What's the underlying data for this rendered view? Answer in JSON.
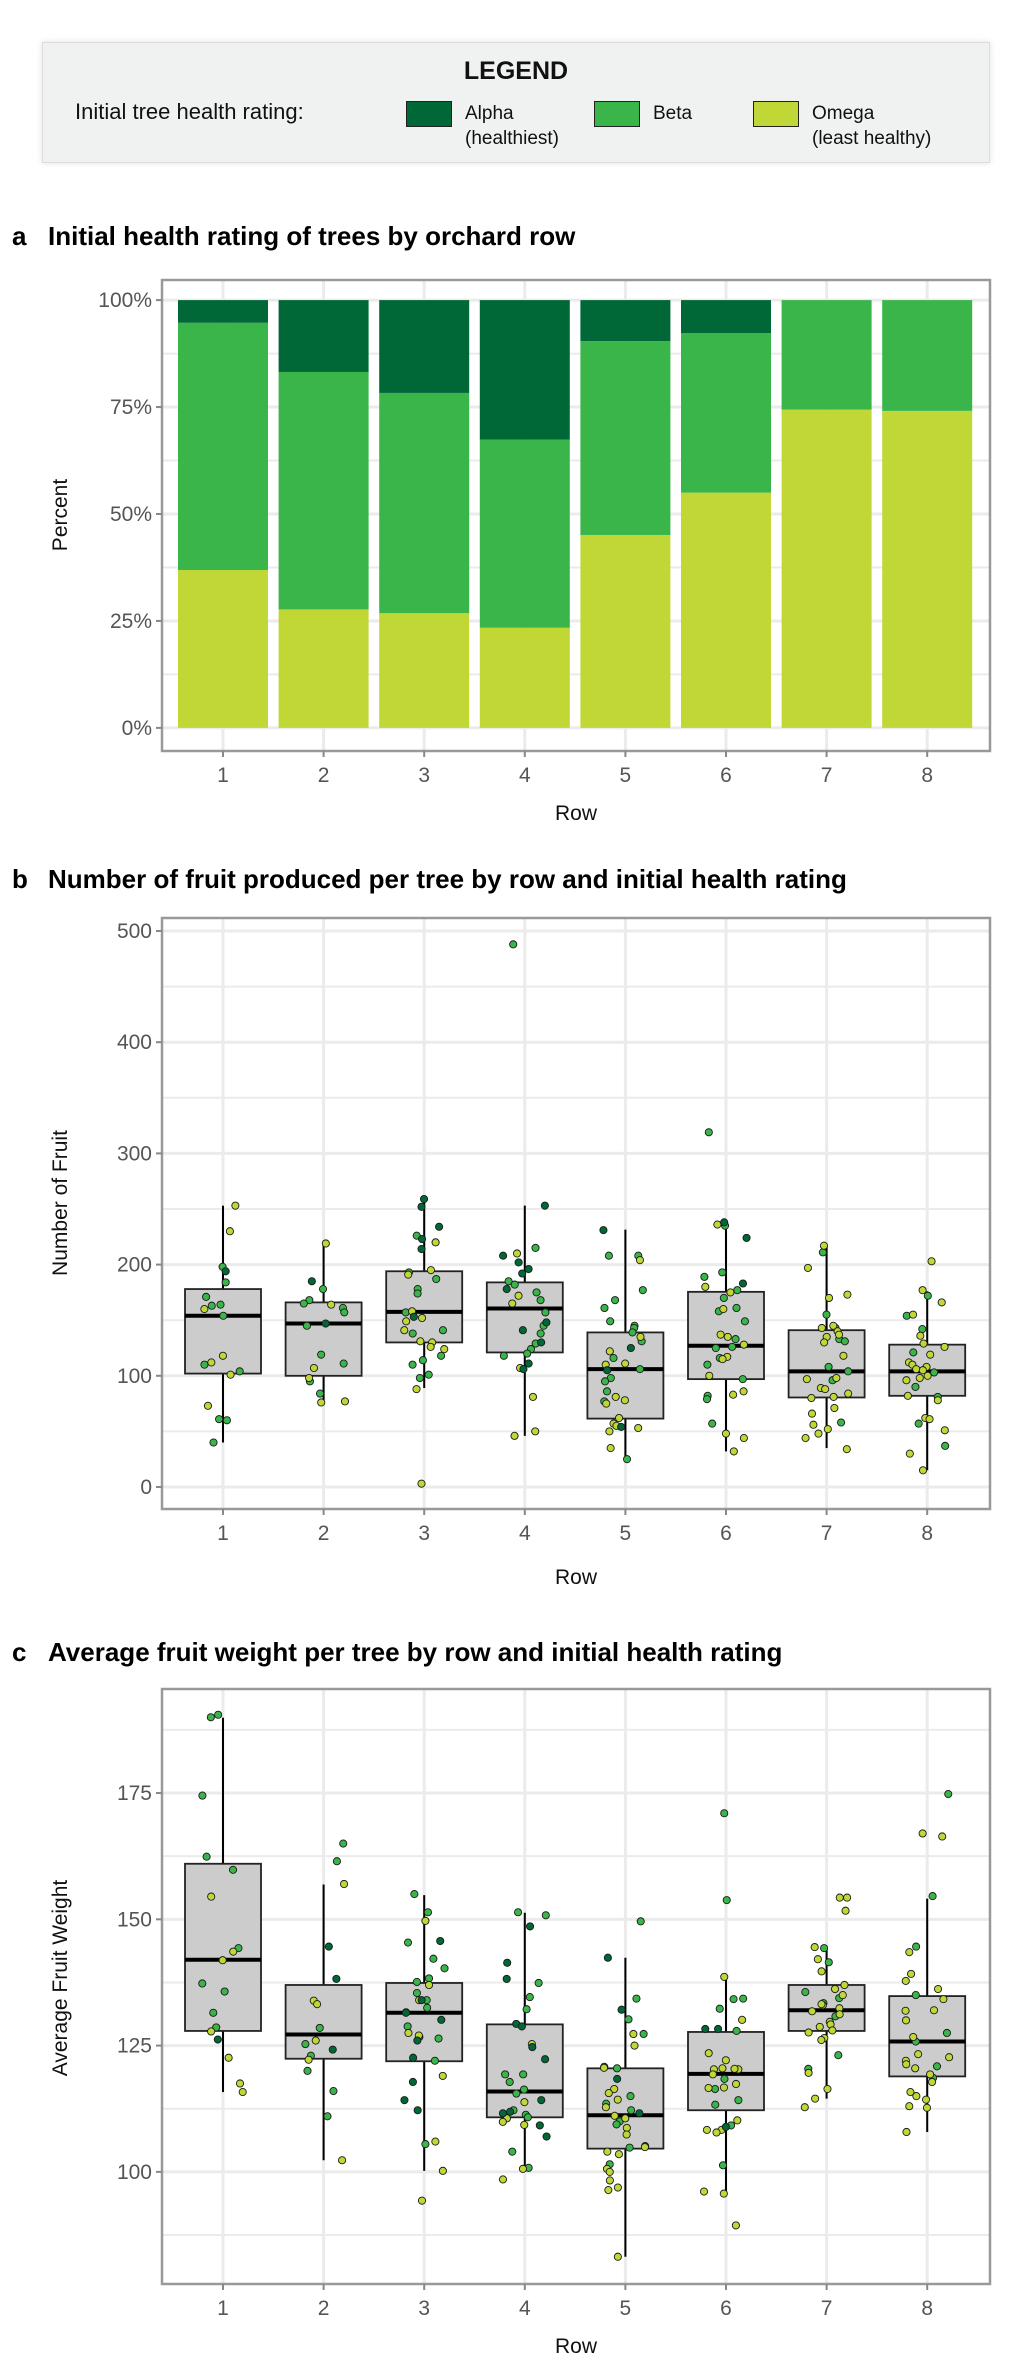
{
  "legend": {
    "title": "LEGEND",
    "label": "Initial tree health rating:",
    "items": [
      {
        "key": "alpha",
        "line1": "Alpha",
        "line2": "(healthiest)",
        "color": "#006837"
      },
      {
        "key": "beta",
        "line1": "Beta",
        "line2": "",
        "color": "#3ab54a"
      },
      {
        "key": "omega",
        "line1": "Omega",
        "line2": "(least healthy)",
        "color": "#c0d736"
      }
    ]
  },
  "colors": {
    "alpha": "#006837",
    "beta": "#3ab54a",
    "omega": "#c0d736",
    "box_fill": "#cccccc",
    "grid": "#ebebeb",
    "panel_border": "#999999"
  },
  "chart_data": [
    {
      "id": "a",
      "letter": "a",
      "title": "Initial health rating of trees by orchard row",
      "type": "bar",
      "stacked": true,
      "xlabel": "Row",
      "ylabel": "Percent",
      "categories": [
        "1",
        "2",
        "3",
        "4",
        "5",
        "6",
        "7",
        "8"
      ],
      "yticks": [
        0,
        25,
        50,
        75,
        100
      ],
      "ytick_labels": [
        "0%",
        "25%",
        "50%",
        "75%",
        "100%"
      ],
      "ylim": [
        -5.4,
        104.7
      ],
      "grid": true,
      "series": [
        {
          "key": "omega",
          "values": [
            36.9,
            27.7,
            26.8,
            23.4,
            45.1,
            55.0,
            74.4,
            74.1
          ]
        },
        {
          "key": "beta",
          "values": [
            57.8,
            55.5,
            51.5,
            44.0,
            45.3,
            37.3,
            25.6,
            25.9
          ]
        },
        {
          "key": "alpha",
          "values": [
            5.3,
            16.8,
            21.7,
            32.6,
            9.6,
            7.7,
            0,
            0
          ]
        }
      ]
    },
    {
      "id": "b",
      "letter": "b",
      "title": "Number of fruit produced per tree by row and initial health rating",
      "type": "box",
      "xlabel": "Row",
      "ylabel": "Number of Fruit",
      "categories": [
        "1",
        "2",
        "3",
        "4",
        "5",
        "6",
        "7",
        "8"
      ],
      "yticks": [
        0,
        100,
        200,
        300,
        400,
        500
      ],
      "ytick_labels": [
        "0",
        "100",
        "200",
        "300",
        "400",
        "500"
      ],
      "ylim": [
        -19.8,
        511.7
      ],
      "grid": true,
      "boxes": [
        {
          "low": 40,
          "q1": 102,
          "median": 154,
          "q3": 178,
          "high": 253
        },
        {
          "low": 77,
          "q1": 100,
          "median": 147,
          "q3": 166,
          "high": 219
        },
        {
          "low": 89,
          "q1": 130,
          "median": 157.5,
          "q3": 194,
          "high": 259
        },
        {
          "low": 46,
          "q1": 121,
          "median": 160.5,
          "q3": 184,
          "high": 253
        },
        {
          "low": 25,
          "q1": 61.5,
          "median": 106,
          "q3": 139,
          "high": 231.5
        },
        {
          "low": 32,
          "q1": 97,
          "median": 127,
          "q3": 175.5,
          "high": 238
        },
        {
          "low": 35,
          "q1": 80.5,
          "median": 104,
          "q3": 141,
          "high": 217
        },
        {
          "low": 15,
          "q1": 82,
          "median": 104,
          "q3": 128,
          "high": 176
        }
      ],
      "points": [
        {
          "alpha": [
            194
          ],
          "beta": [
            198,
            184,
            171,
            163,
            164,
            154,
            110,
            104,
            60,
            61,
            40
          ],
          "omega": [
            253,
            230,
            160,
            118,
            112,
            101,
            73
          ]
        },
        {
          "alpha": [
            185,
            147
          ],
          "beta": [
            178,
            168,
            165,
            161,
            157,
            145,
            119,
            111,
            95,
            84
          ],
          "omega": [
            219,
            164,
            107,
            98,
            77,
            76
          ]
        },
        {
          "alpha": [
            259,
            252,
            234,
            223,
            214,
            153
          ],
          "beta": [
            226,
            193,
            187,
            178,
            174,
            157,
            141,
            138,
            118,
            114,
            110,
            101,
            98
          ],
          "omega": [
            220,
            195,
            191,
            158,
            152,
            149,
            141,
            131,
            130,
            126,
            124,
            88,
            3
          ]
        },
        {
          "alpha": [
            253,
            208,
            202,
            196,
            192,
            178,
            148,
            141,
            130,
            111,
            106
          ],
          "beta": [
            488,
            215,
            185,
            182,
            175,
            168,
            157,
            145,
            138,
            129,
            124,
            120,
            118
          ],
          "omega": [
            210,
            172,
            165,
            107,
            81,
            50,
            46
          ]
        },
        {
          "alpha": [
            231,
            125,
            105,
            54
          ],
          "beta": [
            208,
            208,
            177,
            168,
            161,
            149,
            145,
            143,
            139,
            131,
            116,
            106,
            98,
            95,
            86,
            77,
            25
          ],
          "omega": [
            204,
            135,
            122,
            111,
            110,
            81,
            78,
            75,
            62,
            57,
            55,
            53,
            50,
            35
          ]
        },
        {
          "alpha": [
            238,
            224,
            183
          ],
          "beta": [
            319,
            235,
            193,
            189,
            177,
            170,
            161,
            158,
            149,
            133,
            126,
            125,
            116,
            110,
            97,
            82,
            79,
            57
          ],
          "omega": [
            236,
            180,
            175,
            160,
            137,
            135,
            128,
            117,
            115,
            100,
            86,
            83,
            48,
            44,
            32
          ]
        },
        {
          "alpha": [],
          "beta": [
            211,
            155,
            143,
            133,
            131,
            108,
            104,
            96,
            58
          ],
          "omega": [
            217,
            197,
            173,
            170,
            145,
            143,
            140,
            137,
            135,
            130,
            118,
            98,
            97,
            89,
            88,
            84,
            81,
            80,
            71,
            66,
            56,
            52,
            48,
            44,
            34
          ]
        },
        {
          "alpha": [],
          "beta": [
            172,
            154,
            142,
            121,
            103,
            90,
            81,
            57,
            37
          ],
          "omega": [
            203,
            177,
            166,
            155,
            136,
            129,
            126,
            119,
            112,
            110,
            108,
            106,
            105,
            100,
            98,
            96,
            82,
            78,
            62,
            61,
            51,
            30,
            15
          ]
        }
      ]
    },
    {
      "id": "c",
      "letter": "c",
      "title": "Average fruit weight per tree by row and initial health rating",
      "type": "box",
      "xlabel": "Row",
      "ylabel": "Average Fruit Weight",
      "categories": [
        "1",
        "2",
        "3",
        "4",
        "5",
        "6",
        "7",
        "8"
      ],
      "yticks": [
        100,
        125,
        150,
        175
      ],
      "ytick_labels": [
        "100",
        "125",
        "150",
        "175"
      ],
      "ylim": [
        77.8,
        195.6
      ],
      "grid": true,
      "boxes": [
        {
          "low": 115.8,
          "q1": 127.9,
          "median": 142.0,
          "q3": 161.0,
          "high": 189.9
        },
        {
          "low": 102.3,
          "q1": 122.4,
          "median": 127.2,
          "q3": 137.0,
          "high": 156.9
        },
        {
          "low": 100.2,
          "q1": 121.9,
          "median": 131.5,
          "q3": 137.4,
          "high": 154.8
        },
        {
          "low": 100.6,
          "q1": 110.8,
          "median": 115.9,
          "q3": 129.2,
          "high": 151.3
        },
        {
          "low": 83.2,
          "q1": 104.6,
          "median": 111.2,
          "q3": 120.5,
          "high": 142.4
        },
        {
          "low": 95.7,
          "q1": 112.2,
          "median": 119.4,
          "q3": 127.7,
          "high": 139.0
        },
        {
          "low": 114.5,
          "q1": 127.9,
          "median": 132.0,
          "q3": 137.0,
          "high": 144.5
        },
        {
          "low": 107.9,
          "q1": 118.9,
          "median": 125.8,
          "q3": 134.8,
          "high": 154.1
        }
      ],
      "points": [
        {
          "alpha": [
            126.2
          ],
          "beta": [
            190,
            190.5,
            174.5,
            162.4,
            159.8,
            144.3,
            137.3,
            135.7,
            131.5,
            128.6
          ],
          "omega": [
            154.5,
            143.6,
            141.9,
            127.8,
            122.6,
            117.5,
            115.8
          ]
        },
        {
          "alpha": [
            144.6,
            138.2,
            124.2
          ],
          "beta": [
            165,
            161.5,
            128.5,
            125.3,
            123,
            120,
            116,
            111
          ],
          "omega": [
            157,
            133.9,
            133.2,
            126,
            122.2,
            102.3
          ]
        },
        {
          "alpha": [
            145.7,
            134,
            131.5,
            130.1,
            126,
            122.6,
            117.8,
            114.2,
            112.2
          ],
          "beta": [
            155,
            151.4,
            145.4,
            142.2,
            140.3,
            138.3,
            137.6,
            135.4,
            134,
            132.5,
            128.8,
            126.7,
            126.4,
            122,
            105.5
          ],
          "omega": [
            149.7,
            137,
            134,
            131.6,
            127.5,
            127,
            119,
            106,
            100.2,
            94.3
          ]
        },
        {
          "alpha": [
            148.6,
            141.4,
            138.2,
            129.3,
            128.8,
            124.7,
            122.3,
            114.2,
            111.9,
            111.6,
            109.2,
            107
          ],
          "beta": [
            151.4,
            150.8,
            137.4,
            134.6,
            132.2,
            119.3,
            119.3,
            117.8,
            116.3,
            115.5,
            112.2,
            111.3,
            110.8,
            104,
            100.8
          ],
          "omega": [
            125.3,
            113.8,
            110.6,
            109.9,
            109.3,
            100.6,
            98.5
          ]
        },
        {
          "alpha": [
            142.4,
            132.1,
            118.4,
            111.6
          ],
          "beta": [
            149.6,
            134.3,
            130.2,
            127.3,
            120.8,
            120.5,
            115,
            113.5,
            112.2,
            110,
            109.4,
            105.1,
            104.8,
            101.5
          ],
          "omega": [
            127.3,
            125,
            120.6,
            116.4,
            115.6,
            114.3,
            112.8,
            111.1,
            110.6,
            108.7,
            107.4,
            104.9,
            104,
            103.5,
            100.6,
            100,
            98.3,
            96.9,
            96.4,
            83.2
          ]
        },
        {
          "alpha": [
            128.3,
            128.3,
            108.9
          ],
          "beta": [
            171,
            153.8,
            134.3,
            134.2,
            132.3,
            127.9,
            118.4,
            116.4,
            114.2,
            113.3,
            109.2,
            101.3
          ],
          "omega": [
            138.6,
            130.1,
            123.5,
            122.1,
            120.5,
            120.3,
            120.3,
            120.4,
            119.3,
            117.4,
            116.6,
            116.7,
            110.2,
            108.3,
            108.3,
            107.8,
            96.1,
            95.7,
            89.4
          ]
        },
        {
          "alpha": [],
          "beta": [
            144.3,
            141.5,
            135.6,
            134.4,
            133.4,
            130.8,
            123.1,
            120.4
          ],
          "omega": [
            154.3,
            154.3,
            151.7,
            144.5,
            142.1,
            139.7,
            137,
            136.2,
            135,
            133,
            133.2,
            132.4,
            131.8,
            131.2,
            129.7,
            129.2,
            128.7,
            128,
            127.6,
            126.5,
            126.1,
            119.6,
            116.4,
            114.5,
            112.8
          ]
        },
        {
          "alpha": [],
          "beta": [
            174.8,
            154.6,
            144.6,
            135,
            127.5,
            125.8,
            120.9,
            118.6
          ],
          "omega": [
            167,
            166.4,
            143.5,
            139.2,
            137.8,
            136.2,
            134.2,
            132,
            131.9,
            130,
            126.7,
            123.3,
            122.7,
            122,
            121.3,
            120.5,
            119.3,
            117.8,
            115.8,
            115,
            114.3,
            113,
            112.7,
            107.9
          ]
        }
      ]
    }
  ]
}
